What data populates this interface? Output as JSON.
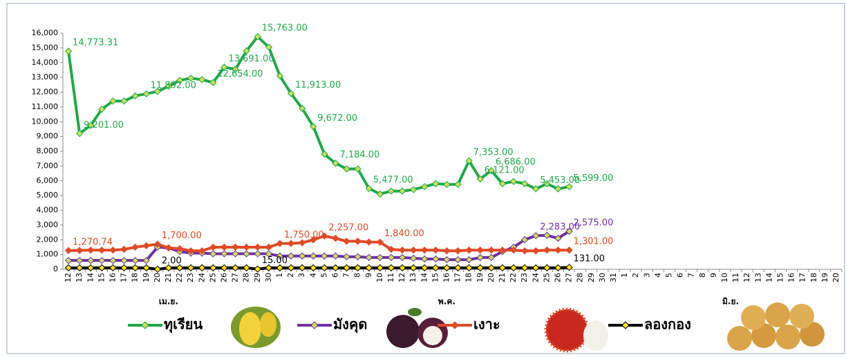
{
  "chart_data": {
    "type": "line",
    "months": [
      {
        "name": "เม.ย.",
        "days": [
          "12",
          "13",
          "14",
          "15",
          "16",
          "17",
          "18",
          "19",
          "20",
          "21",
          "22",
          "23",
          "24",
          "25",
          "26",
          "27",
          "28",
          "29",
          "30"
        ]
      },
      {
        "name": "พ.ค.",
        "days": [
          "1",
          "2",
          "3",
          "4",
          "5",
          "6",
          "7",
          "8",
          "9",
          "10",
          "11",
          "12",
          "13",
          "14",
          "15",
          "16",
          "17",
          "18",
          "19",
          "20",
          "21",
          "22",
          "23",
          "24",
          "25",
          "26",
          "27",
          "28",
          "29",
          "30",
          "31"
        ]
      },
      {
        "name": "มิ.ย.",
        "days": [
          "1",
          "2",
          "3",
          "4",
          "5",
          "6",
          "7",
          "8",
          "9",
          "10",
          "11",
          "12",
          "13",
          "14",
          "15",
          "16",
          "17",
          "18",
          "19",
          "20"
        ]
      }
    ],
    "ylim": [
      0,
      16000
    ],
    "yticks": [
      0,
      {
        "value": 1000,
        "label": "1,000"
      },
      {
        "value": 2000,
        "label": "2,000"
      },
      {
        "value": 3000,
        "label": "3,000"
      },
      {
        "value": 4000,
        "label": "4,000"
      },
      {
        "value": 5000,
        "label": "5,000"
      },
      {
        "value": 6000,
        "label": "6,000"
      },
      {
        "value": 7000,
        "label": "7,000"
      },
      {
        "value": 8000,
        "label": "8,000"
      },
      {
        "value": 9000,
        "label": "9,000"
      },
      {
        "value": 10000,
        "label": "10,000"
      },
      {
        "value": 11000,
        "label": "11,000"
      },
      {
        "value": 12000,
        "label": "12,000"
      },
      {
        "value": 13000,
        "label": "13,000"
      },
      {
        "value": 14000,
        "label": "14,000"
      },
      {
        "value": 15000,
        "label": "15,000"
      },
      {
        "value": 16000,
        "label": "16,000"
      }
    ],
    "grid": false,
    "legend": "bottom",
    "series": [
      {
        "name": "ทุเรียน",
        "color": "#1fa84a",
        "marker_color": "#c8e05a",
        "values": [
          14773.31,
          9201,
          9750,
          10850,
          11400,
          11400,
          11750,
          11892,
          12050,
          12400,
          12800,
          12950,
          12850,
          12654,
          13691,
          13550,
          14800,
          15763,
          15050,
          13100,
          11913,
          10900,
          9672,
          7800,
          7184,
          6800,
          6800,
          5477,
          5100,
          5300,
          5300,
          5400,
          5600,
          5800,
          5750,
          5750,
          7353,
          6121,
          6686,
          5800,
          5950,
          5800,
          5453,
          5800,
          5450,
          5599,
          null,
          null,
          null,
          null,
          null,
          null,
          null,
          null,
          null,
          null,
          null,
          null,
          null,
          null,
          null,
          null,
          null,
          null,
          null,
          null,
          null,
          null,
          null,
          null
        ],
        "value_labels": [
          "14,773.31",
          "9,201.00",
          null,
          null,
          null,
          null,
          null,
          "11,892.00",
          null,
          null,
          null,
          null,
          null,
          "12,654.00",
          "13,691.00",
          null,
          null,
          "15,763.00",
          null,
          null,
          "11,913.00",
          null,
          "9,672.00",
          null,
          "7,184.00",
          null,
          null,
          "5,477.00",
          null,
          null,
          null,
          null,
          null,
          null,
          null,
          null,
          "7,353.00",
          "6,121.00",
          "6,686.00",
          null,
          null,
          null,
          "5,453.00",
          null,
          null,
          "5,599.00",
          null,
          null,
          null,
          null,
          null,
          null,
          null,
          null,
          null,
          null,
          null,
          null,
          null,
          null,
          null,
          null,
          null,
          null,
          null,
          null,
          null,
          null,
          null,
          null
        ]
      },
      {
        "name": "มังคุด",
        "color": "#7030a0",
        "marker_color": "#c8e05a",
        "values": [
          600,
          600,
          600,
          600,
          600,
          600,
          600,
          600,
          1500,
          1450,
          1200,
          1100,
          1100,
          1050,
          1050,
          1050,
          1050,
          1050,
          1050,
          900,
          900,
          900,
          900,
          900,
          900,
          850,
          850,
          800,
          800,
          800,
          800,
          750,
          700,
          700,
          650,
          650,
          650,
          800,
          800,
          1200,
          1500,
          2000,
          2283,
          2300,
          2100,
          2575,
          null,
          null,
          null,
          null,
          null,
          null,
          null,
          null,
          null,
          null,
          null,
          null,
          null,
          null,
          null,
          null,
          null,
          null,
          null,
          null,
          null,
          null,
          null,
          null
        ],
        "value_labels": [
          null,
          null,
          null,
          null,
          null,
          null,
          null,
          null,
          null,
          null,
          null,
          null,
          null,
          null,
          null,
          null,
          null,
          null,
          null,
          null,
          null,
          null,
          null,
          null,
          null,
          null,
          null,
          null,
          null,
          null,
          null,
          null,
          null,
          null,
          null,
          null,
          null,
          null,
          null,
          null,
          null,
          null,
          "2,283.00",
          null,
          null,
          "2,575.00",
          null,
          null,
          null,
          null,
          null,
          null,
          null,
          null,
          null,
          null,
          null,
          null,
          null,
          null,
          null,
          null,
          null,
          null,
          null,
          null,
          null,
          null,
          null,
          null
        ]
      },
      {
        "name": "เงาะ",
        "color": "#e04a26",
        "marker_color": "#e04a26",
        "values": [
          1270.74,
          1280,
          1300,
          1300,
          1300,
          1350,
          1500,
          1600,
          1700,
          1450,
          1400,
          1250,
          1250,
          1500,
          1500,
          1500,
          1500,
          1500,
          1500,
          1750,
          1750,
          1800,
          2000,
          2257,
          2100,
          1900,
          1900,
          1850,
          1840,
          1350,
          1300,
          1300,
          1300,
          1300,
          1250,
          1250,
          1300,
          1300,
          1300,
          1300,
          1300,
          1250,
          1250,
          1300,
          1300,
          1301,
          null,
          null,
          null,
          null,
          null,
          null,
          null,
          null,
          null,
          null,
          null,
          null,
          null,
          null,
          null,
          null,
          null,
          null,
          null,
          null,
          null,
          null,
          null,
          null
        ],
        "value_labels": [
          "1,270.74",
          null,
          null,
          null,
          null,
          null,
          null,
          null,
          "1,700.00",
          null,
          null,
          null,
          null,
          null,
          null,
          null,
          null,
          null,
          null,
          "1,750.00",
          null,
          null,
          null,
          "2,257.00",
          null,
          null,
          null,
          null,
          "1,840.00",
          null,
          null,
          null,
          null,
          null,
          null,
          null,
          null,
          null,
          null,
          null,
          null,
          null,
          null,
          null,
          null,
          "1,301.00",
          null,
          null,
          null,
          null,
          null,
          null,
          null,
          null,
          null,
          null,
          null,
          null,
          null,
          null,
          null,
          null,
          null,
          null,
          null,
          null,
          null,
          null,
          null,
          null
        ]
      },
      {
        "name": "ลองกอง",
        "color": "#000000",
        "marker_color": "#ffe600",
        "values": [
          100,
          100,
          100,
          100,
          100,
          100,
          100,
          100,
          2,
          100,
          100,
          100,
          100,
          100,
          100,
          100,
          100,
          15,
          100,
          100,
          100,
          100,
          100,
          100,
          100,
          100,
          100,
          100,
          100,
          100,
          100,
          100,
          100,
          100,
          100,
          100,
          100,
          100,
          100,
          100,
          100,
          100,
          100,
          100,
          100,
          131,
          null,
          null,
          null,
          null,
          null,
          null,
          null,
          null,
          null,
          null,
          null,
          null,
          null,
          null,
          null,
          null,
          null,
          null,
          null,
          null,
          null,
          null,
          null,
          null
        ],
        "value_labels": [
          null,
          null,
          null,
          null,
          null,
          null,
          null,
          null,
          "2.00",
          null,
          null,
          null,
          null,
          null,
          null,
          null,
          null,
          "15.00",
          null,
          null,
          null,
          null,
          null,
          null,
          null,
          null,
          null,
          null,
          null,
          null,
          null,
          null,
          null,
          null,
          null,
          null,
          null,
          null,
          null,
          null,
          null,
          null,
          null,
          null,
          null,
          "131.00",
          null,
          null,
          null,
          null,
          null,
          null,
          null,
          null,
          null,
          null,
          null,
          null,
          null,
          null,
          null,
          null,
          null,
          null,
          null,
          null,
          null,
          null,
          null,
          null
        ]
      }
    ]
  }
}
